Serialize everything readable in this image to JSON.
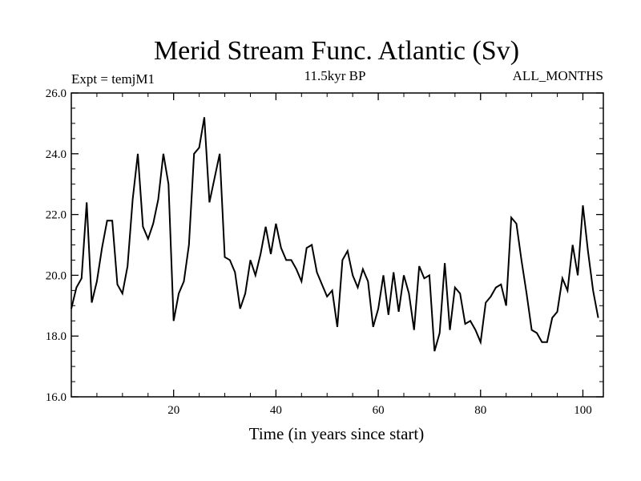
{
  "chart_data": {
    "type": "line",
    "title": "Merid Stream Func. Atlantic (Sv)",
    "annotations": {
      "left": "Expt = temjM1",
      "center": "11.5kyr BP",
      "right": "ALL_MONTHS"
    },
    "xlabel": "Time (in years since start)",
    "ylabel": "",
    "xlim": [
      0,
      104
    ],
    "ylim": [
      16,
      26
    ],
    "x_ticks": [
      20,
      40,
      60,
      80,
      100
    ],
    "x_tick_labels": [
      "20",
      "40",
      "60",
      "80",
      "100"
    ],
    "y_ticks": [
      16,
      18,
      20,
      22,
      24,
      26
    ],
    "y_tick_labels": [
      "16.0",
      "18.0",
      "20.0",
      "22.0",
      "24.0",
      "26.0"
    ],
    "grid": false,
    "series": [
      {
        "color": "#000000",
        "x": [
          0,
          1,
          2,
          3,
          4,
          5,
          6,
          7,
          8,
          9,
          10,
          11,
          12,
          13,
          14,
          15,
          16,
          17,
          18,
          19,
          20,
          21,
          22,
          23,
          24,
          25,
          26,
          27,
          28,
          29,
          30,
          31,
          32,
          33,
          34,
          35,
          36,
          37,
          38,
          39,
          40,
          41,
          42,
          43,
          44,
          45,
          46,
          47,
          48,
          49,
          50,
          51,
          52,
          53,
          54,
          55,
          56,
          57,
          58,
          59,
          60,
          61,
          62,
          63,
          64,
          65,
          66,
          67,
          68,
          69,
          70,
          71,
          72,
          73,
          74,
          75,
          76,
          77,
          78,
          79,
          80,
          81,
          82,
          83,
          84,
          85,
          86,
          87,
          88,
          89,
          90,
          91,
          92,
          93,
          94,
          95,
          96,
          97,
          98,
          99,
          100,
          101,
          102,
          103
        ],
        "y": [
          18.9,
          19.6,
          19.9,
          22.4,
          19.1,
          19.8,
          20.9,
          21.8,
          21.8,
          19.7,
          19.4,
          20.3,
          22.5,
          24.0,
          21.6,
          21.2,
          21.7,
          22.5,
          24.0,
          23.0,
          18.5,
          19.4,
          19.8,
          21.0,
          24.0,
          24.2,
          25.2,
          22.4,
          23.2,
          24.0,
          20.6,
          20.5,
          20.1,
          18.9,
          19.4,
          20.5,
          20.0,
          20.7,
          21.6,
          20.7,
          21.7,
          20.9,
          20.5,
          20.5,
          20.2,
          19.8,
          20.9,
          21.0,
          20.1,
          19.7,
          19.3,
          19.5,
          18.3,
          20.5,
          20.8,
          20.0,
          19.6,
          20.2,
          19.8,
          18.3,
          18.9,
          20.0,
          18.7,
          20.1,
          18.8,
          20.0,
          19.4,
          18.2,
          20.3,
          19.9,
          20.0,
          17.5,
          18.1,
          20.4,
          18.2,
          19.6,
          19.4,
          18.4,
          18.5,
          18.2,
          17.8,
          19.1,
          19.3,
          19.6,
          19.7,
          19.0,
          21.9,
          21.7,
          20.5,
          19.4,
          18.2,
          18.1,
          17.8,
          17.8,
          18.6,
          18.8,
          19.9,
          19.5,
          21.0,
          20.0,
          22.3,
          20.8,
          19.5,
          18.6
        ]
      }
    ]
  }
}
